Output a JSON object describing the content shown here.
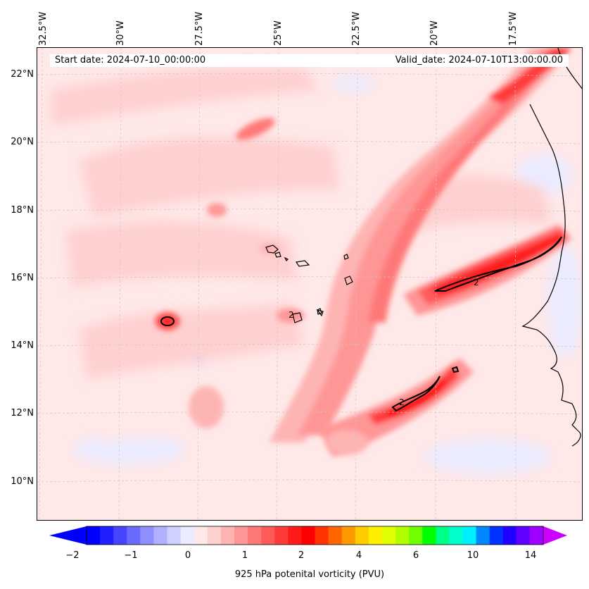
{
  "map": {
    "start_date": "Start date: 2024-07-10_00:00:00",
    "valid_date": "Valid_date: 2024-07-10T13:00:00.00",
    "longitude_labels": [
      "32.5°W",
      "30°W",
      "27.5°W",
      "25°W",
      "22.5°W",
      "20°W",
      "17.5°W"
    ],
    "latitude_labels": [
      "22°N",
      "20°N",
      "18°N",
      "16°N",
      "14°N",
      "12°N",
      "10°N"
    ],
    "contour_label": "2",
    "projection_grid": "dashed light gray graticule"
  },
  "colorbar": {
    "label": "925 hPa potenital vorticity (PVU)",
    "tick_labels": [
      "−2",
      "−1",
      "0",
      "1",
      "2",
      "4",
      "6",
      "10",
      "14"
    ],
    "colors": [
      "#0000ff",
      "#2020ff",
      "#4545ff",
      "#6a6aff",
      "#8f8fff",
      "#b0b0ff",
      "#d0d0ff",
      "#ebebff",
      "#ffe8e8",
      "#ffd0d0",
      "#ffb4b4",
      "#ff9696",
      "#ff7878",
      "#ff5a5a",
      "#ff3a3a",
      "#ff1a1a",
      "#ff0000",
      "#ff3300",
      "#ff6600",
      "#ff9900",
      "#ffcc00",
      "#ffee00",
      "#e0ff00",
      "#b0ff00",
      "#70ff00",
      "#00ff00",
      "#00ff88",
      "#00ffcc",
      "#00eeff",
      "#0088ff",
      "#0033ff",
      "#2000ff",
      "#6000ff",
      "#a000ff"
    ],
    "under_color": "#0000ff",
    "over_color": "#cc00ff"
  }
}
